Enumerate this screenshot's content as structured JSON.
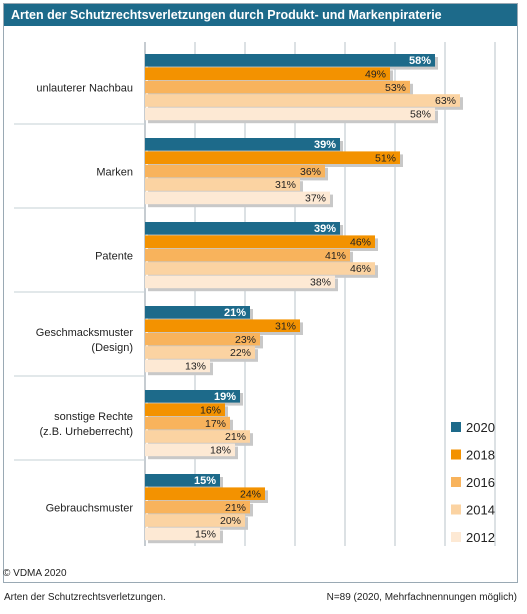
{
  "title": "Arten der Schutzrechtsverletzungen durch Produkt- und Markenpiraterie",
  "copyright": "© VDMA 2020",
  "footer": {
    "caption": "Arten der Schutzrechtsverletzungen.",
    "note": "N=89 (2020, Mehrfachnennungen möglich)"
  },
  "colors": {
    "2020": "#1d6a8a",
    "2018": "#f39200",
    "2016": "#f8b35c",
    "2014": "#fbd3a2",
    "2012": "#fde9d4"
  },
  "chart_data": {
    "type": "bar",
    "orientation": "horizontal",
    "categories": [
      [
        "unlauterer Nachbau"
      ],
      [
        "Marken"
      ],
      [
        "Patente"
      ],
      [
        "Geschmacksmuster",
        "(Design)"
      ],
      [
        "sonstige Rechte",
        "(z.B. Urheberrecht)"
      ],
      [
        "Gebrauchsmuster"
      ]
    ],
    "series": [
      {
        "name": "2020",
        "values": [
          58,
          39,
          39,
          21,
          19,
          15
        ]
      },
      {
        "name": "2018",
        "values": [
          49,
          51,
          46,
          31,
          16,
          24
        ]
      },
      {
        "name": "2016",
        "values": [
          53,
          36,
          41,
          23,
          17,
          21
        ]
      },
      {
        "name": "2014",
        "values": [
          63,
          31,
          46,
          22,
          21,
          20
        ]
      },
      {
        "name": "2012",
        "values": [
          58,
          37,
          38,
          13,
          18,
          15
        ]
      }
    ],
    "value_suffix": "%",
    "xlim": [
      0,
      70
    ],
    "grid": true,
    "legend_position": "right-bottom"
  }
}
